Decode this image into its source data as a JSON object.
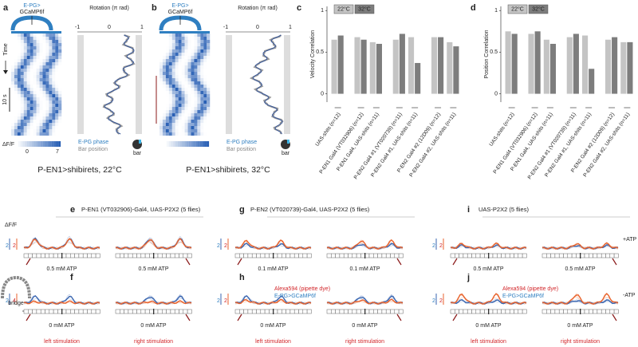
{
  "panel_a": {
    "label": "a",
    "genotype": [
      "E-PG>",
      "GCaMP6f"
    ],
    "time_label": "Time",
    "time_scale": "10 s",
    "colorbar_label": "ΔF/F",
    "colorbar_ticks": [
      "0",
      "7"
    ],
    "rotation_label": "Rotation (π rad)",
    "rotation_ticks": [
      "-1",
      "0",
      "1"
    ],
    "legend": [
      "E-PG phase",
      "Bar position"
    ],
    "icon_label": "bar",
    "caption": "P-EN1>shibirets, 22°C"
  },
  "panel_b": {
    "label": "b",
    "genotype": [
      "E-PG>",
      "GCaMP6f"
    ],
    "rotation_label": "Rotation (π rad)",
    "rotation_ticks": [
      "-1",
      "0",
      "1"
    ],
    "legend": [
      "E-PG phase",
      "Bar position"
    ],
    "icon_label": "bar",
    "caption": "P-EN1>shibirets, 32°C"
  },
  "chart_data": [
    {
      "type": "bar",
      "panel_label": "c",
      "y_label": "Velocity Correlation",
      "categories": [
        "UAS-shits (n=12)",
        "P-EN1 Gal4 (VT032906) (n=12)",
        "P-EN1 Gal4, UAS-shits (n=11)",
        "P-EN2 Gal4 #1 (VT020739) (n=11)",
        "P-EN2 Gal4 #1, UAS-shits (n=11)",
        "P-EN2 Gal4 #2 (12D09) (n=12)",
        "P-EN2 Gal4 #2, UAS-shits (n=11)"
      ],
      "series": [
        {
          "name": "22°C",
          "color": "#c4c4c4",
          "values": [
            0.65,
            0.68,
            0.62,
            0.65,
            0.68,
            0.68,
            0.62
          ]
        },
        {
          "name": "32°C",
          "color": "#7d7d7d",
          "values": [
            0.7,
            0.65,
            0.6,
            0.72,
            0.37,
            0.68,
            0.57
          ]
        }
      ],
      "ylim": [
        -0.1,
        1.05
      ],
      "yticks": [
        0,
        0.5,
        1
      ]
    },
    {
      "type": "bar",
      "panel_label": "d",
      "y_label": "Position Correlation",
      "categories": [
        "UAS-shits (n=12)",
        "P-EN1 Gal4 (VT032906) (n=12)",
        "P-EN1 Gal4, UAS-shits (n=11)",
        "P-EN2 Gal4 #1 (VT020739) (n=11)",
        "P-EN2 Gal4 #1, UAS-shits (n=11)",
        "P-EN2 Gal4 #2 (12D09) (n=12)",
        "P-EN2 Gal4 #2, UAS-shits (n=11)"
      ],
      "series": [
        {
          "name": "22°C",
          "color": "#c4c4c4",
          "values": [
            0.75,
            0.72,
            0.65,
            0.68,
            0.7,
            0.65,
            0.62
          ]
        },
        {
          "name": "32°C",
          "color": "#7d7d7d",
          "values": [
            0.72,
            0.75,
            0.6,
            0.72,
            0.3,
            0.68,
            0.62
          ]
        }
      ],
      "ylim": [
        -0.1,
        1.05
      ],
      "yticks": [
        0,
        0.5,
        1
      ]
    }
  ],
  "bottom_panels": [
    {
      "label": "e",
      "title": "P-EN1 (VT032906)-Gal4, UAS-P2X2 (5 flies)",
      "y_label": "ΔF/F",
      "scale_labels": [
        "2",
        "2"
      ],
      "stim_labels": [
        "0.5 mM ATP",
        "0.5 mM ATP"
      ]
    },
    {
      "label": "g",
      "title": "P-EN2 (VT020739)-Gal4, UAS-P2X2 (5 flies)",
      "scale_labels": [
        "2",
        "2"
      ],
      "stim_labels": [
        "0.1 mM ATP",
        "0.1 mM ATP"
      ]
    },
    {
      "label": "i",
      "title": "UAS-P2X2 (5 flies)",
      "scale_labels": [
        "2",
        "2"
      ],
      "stim_labels": [
        "0.5 mM ATP",
        "0.5 mM ATP"
      ],
      "side_label": "+ATP"
    },
    {
      "label": "f",
      "scale_labels": [
        "2",
        "4"
      ],
      "stim_labels": [
        "0 mM ATP",
        "0 mM ATP"
      ],
      "stimulation_labels": [
        "left stimulation",
        "right stimulation"
      ],
      "icon_label": "bridge"
    },
    {
      "label": "h",
      "legend": [
        "Alexa594 (pipette dye)",
        "E-PG>GCaMP6f"
      ],
      "scale_labels": [
        "2",
        "2"
      ],
      "stim_labels": [
        "0 mM ATP",
        "0 mM ATP"
      ],
      "stimulation_labels": [
        "left stimulation",
        "right stimulation"
      ]
    },
    {
      "label": "j",
      "legend": [
        "Alexa594 (pipette dye)",
        "E-PG>GCaMP6f"
      ],
      "scale_labels": [
        "2",
        "2"
      ],
      "stim_labels": [
        "0 mM ATP",
        "0 mM ATP"
      ],
      "stimulation_labels": [
        "left stimulation",
        "right stimulation"
      ],
      "side_label": "-ATP"
    }
  ]
}
